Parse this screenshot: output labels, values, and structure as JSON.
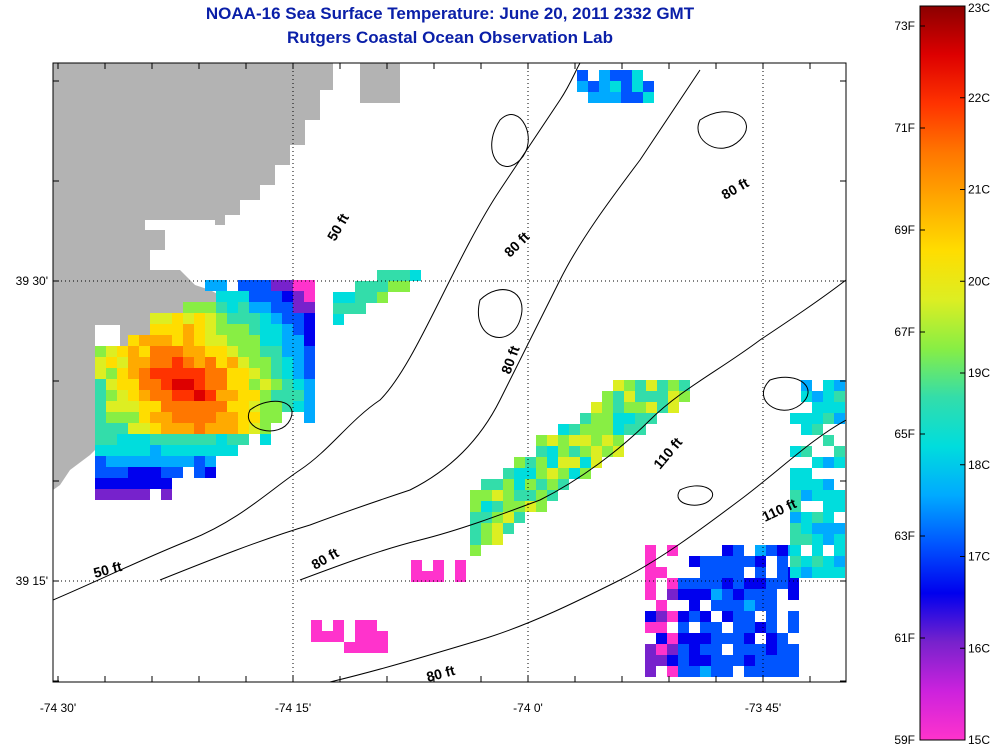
{
  "header": {
    "title": "NOAA-16 Sea Surface Temperature:  June 20, 2011 2332 GMT",
    "subtitle": "Rutgers Coastal Ocean Observation Lab"
  },
  "axes": {
    "x_ticks": [
      "-74 30'",
      "-74 15'",
      "-74 0'",
      "-73 45'"
    ],
    "y_ticks": [
      "39 30'",
      "39 15'"
    ]
  },
  "contour_labels": [
    "50 ft",
    "50 ft",
    "80 ft",
    "80 ft",
    "80 ft",
    "80 ft",
    "80 ft",
    "110 ft",
    "110 ft"
  ],
  "colorbar": {
    "celsius_labels": [
      "23C",
      "22C",
      "21C",
      "20C",
      "19C",
      "18C",
      "17C",
      "16C",
      "15C"
    ],
    "fahrenheit_labels": [
      "73F",
      "71F",
      "69F",
      "67F",
      "65F",
      "63F",
      "61F",
      "59F"
    ],
    "stops": [
      "#ff33cc",
      "#cc22dd",
      "#7722cc",
      "#0000ee",
      "#0055ff",
      "#00aaff",
      "#00dddd",
      "#33ddaa",
      "#88ee44",
      "#ddee22",
      "#ffdd00",
      "#ffaa00",
      "#ff7700",
      "#ff3300",
      "#dd0000",
      "#8b0000"
    ]
  },
  "colors": {
    "land": "#b3b3b3",
    "water": "#ffffff",
    "title": "#0a1fa8"
  }
}
